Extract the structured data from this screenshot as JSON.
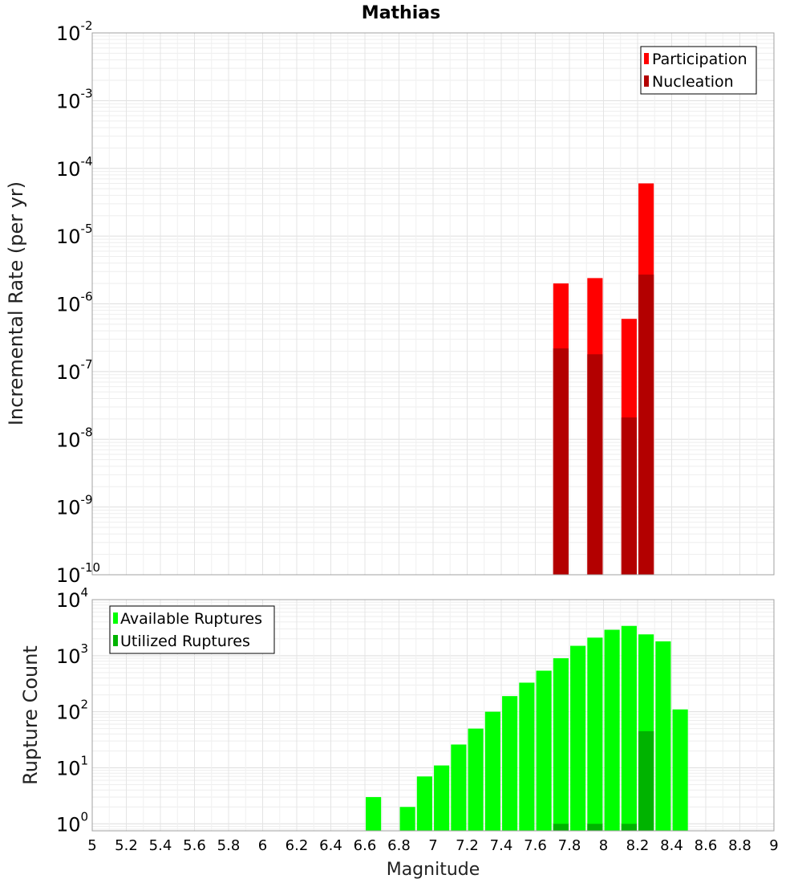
{
  "chart_data": [
    {
      "type": "bar",
      "title": "Mathias",
      "ylabel": "Incremental Rate (per yr)",
      "xlabel": "",
      "yscale": "log",
      "ylim": [
        1e-10,
        0.01
      ],
      "xlim": [
        5,
        9
      ],
      "grid": true,
      "legend_position": "top-right",
      "ytick_labels": [
        {
          "base": "10",
          "exp": "-10"
        },
        {
          "base": "10",
          "exp": "-9"
        },
        {
          "base": "10",
          "exp": "-8"
        },
        {
          "base": "10",
          "exp": "-7"
        },
        {
          "base": "10",
          "exp": "-6"
        },
        {
          "base": "10",
          "exp": "-5"
        },
        {
          "base": "10",
          "exp": "-4"
        },
        {
          "base": "10",
          "exp": "-3"
        },
        {
          "base": "10",
          "exp": "-2"
        }
      ],
      "bar_width": 0.09,
      "series": [
        {
          "name": "Participation",
          "color": "#ff0000",
          "points": [
            {
              "x": 7.75,
              "y": 2e-06
            },
            {
              "x": 7.95,
              "y": 2.4e-06
            },
            {
              "x": 8.15,
              "y": 6e-07
            },
            {
              "x": 8.25,
              "y": 6e-05
            }
          ]
        },
        {
          "name": "Nucleation",
          "color": "#b30000",
          "points": [
            {
              "x": 7.75,
              "y": 2.2e-07
            },
            {
              "x": 7.95,
              "y": 1.8e-07
            },
            {
              "x": 8.15,
              "y": 2.1e-08
            },
            {
              "x": 8.25,
              "y": 2.7e-06
            }
          ]
        }
      ]
    },
    {
      "type": "bar",
      "title": "",
      "ylabel": "Rupture Count",
      "xlabel": "Magnitude",
      "yscale": "log",
      "ylim": [
        0.75,
        10000
      ],
      "xlim": [
        5,
        9
      ],
      "grid": true,
      "legend_position": "top-left",
      "xticks": [
        5,
        5.2,
        5.4,
        5.6,
        5.8,
        6,
        6.2,
        6.4,
        6.6,
        6.8,
        7,
        7.2,
        7.4,
        7.6,
        7.8,
        8,
        8.2,
        8.4,
        8.6,
        8.8,
        9
      ],
      "xtick_labels": [
        "5",
        "5.2",
        "5.4",
        "5.6",
        "5.8",
        "6",
        "6.2",
        "6.4",
        "6.6",
        "6.8",
        "7",
        "7.2",
        "7.4",
        "7.6",
        "7.8",
        "8",
        "8.2",
        "8.4",
        "8.6",
        "8.8",
        "9"
      ],
      "ytick_labels": [
        {
          "base": "10",
          "exp": "0"
        },
        {
          "base": "10",
          "exp": "1"
        },
        {
          "base": "10",
          "exp": "2"
        },
        {
          "base": "10",
          "exp": "3"
        },
        {
          "base": "10",
          "exp": "4"
        }
      ],
      "bar_width": 0.09,
      "series": [
        {
          "name": "Available Ruptures",
          "color": "#00ff00",
          "points": [
            {
              "x": 6.65,
              "y": 3
            },
            {
              "x": 6.85,
              "y": 2
            },
            {
              "x": 6.95,
              "y": 7
            },
            {
              "x": 7.05,
              "y": 11
            },
            {
              "x": 7.15,
              "y": 26
            },
            {
              "x": 7.25,
              "y": 50
            },
            {
              "x": 7.35,
              "y": 100
            },
            {
              "x": 7.45,
              "y": 190
            },
            {
              "x": 7.55,
              "y": 330
            },
            {
              "x": 7.65,
              "y": 540
            },
            {
              "x": 7.75,
              "y": 900
            },
            {
              "x": 7.85,
              "y": 1500
            },
            {
              "x": 7.95,
              "y": 2100
            },
            {
              "x": 8.05,
              "y": 2900
            },
            {
              "x": 8.15,
              "y": 3400
            },
            {
              "x": 8.25,
              "y": 2400
            },
            {
              "x": 8.35,
              "y": 1800
            },
            {
              "x": 8.45,
              "y": 110
            }
          ]
        },
        {
          "name": "Utilized Ruptures",
          "color": "#00b300",
          "points": [
            {
              "x": 7.75,
              "y": 1
            },
            {
              "x": 7.95,
              "y": 1
            },
            {
              "x": 8.15,
              "y": 1
            },
            {
              "x": 8.25,
              "y": 45
            }
          ]
        }
      ]
    }
  ]
}
